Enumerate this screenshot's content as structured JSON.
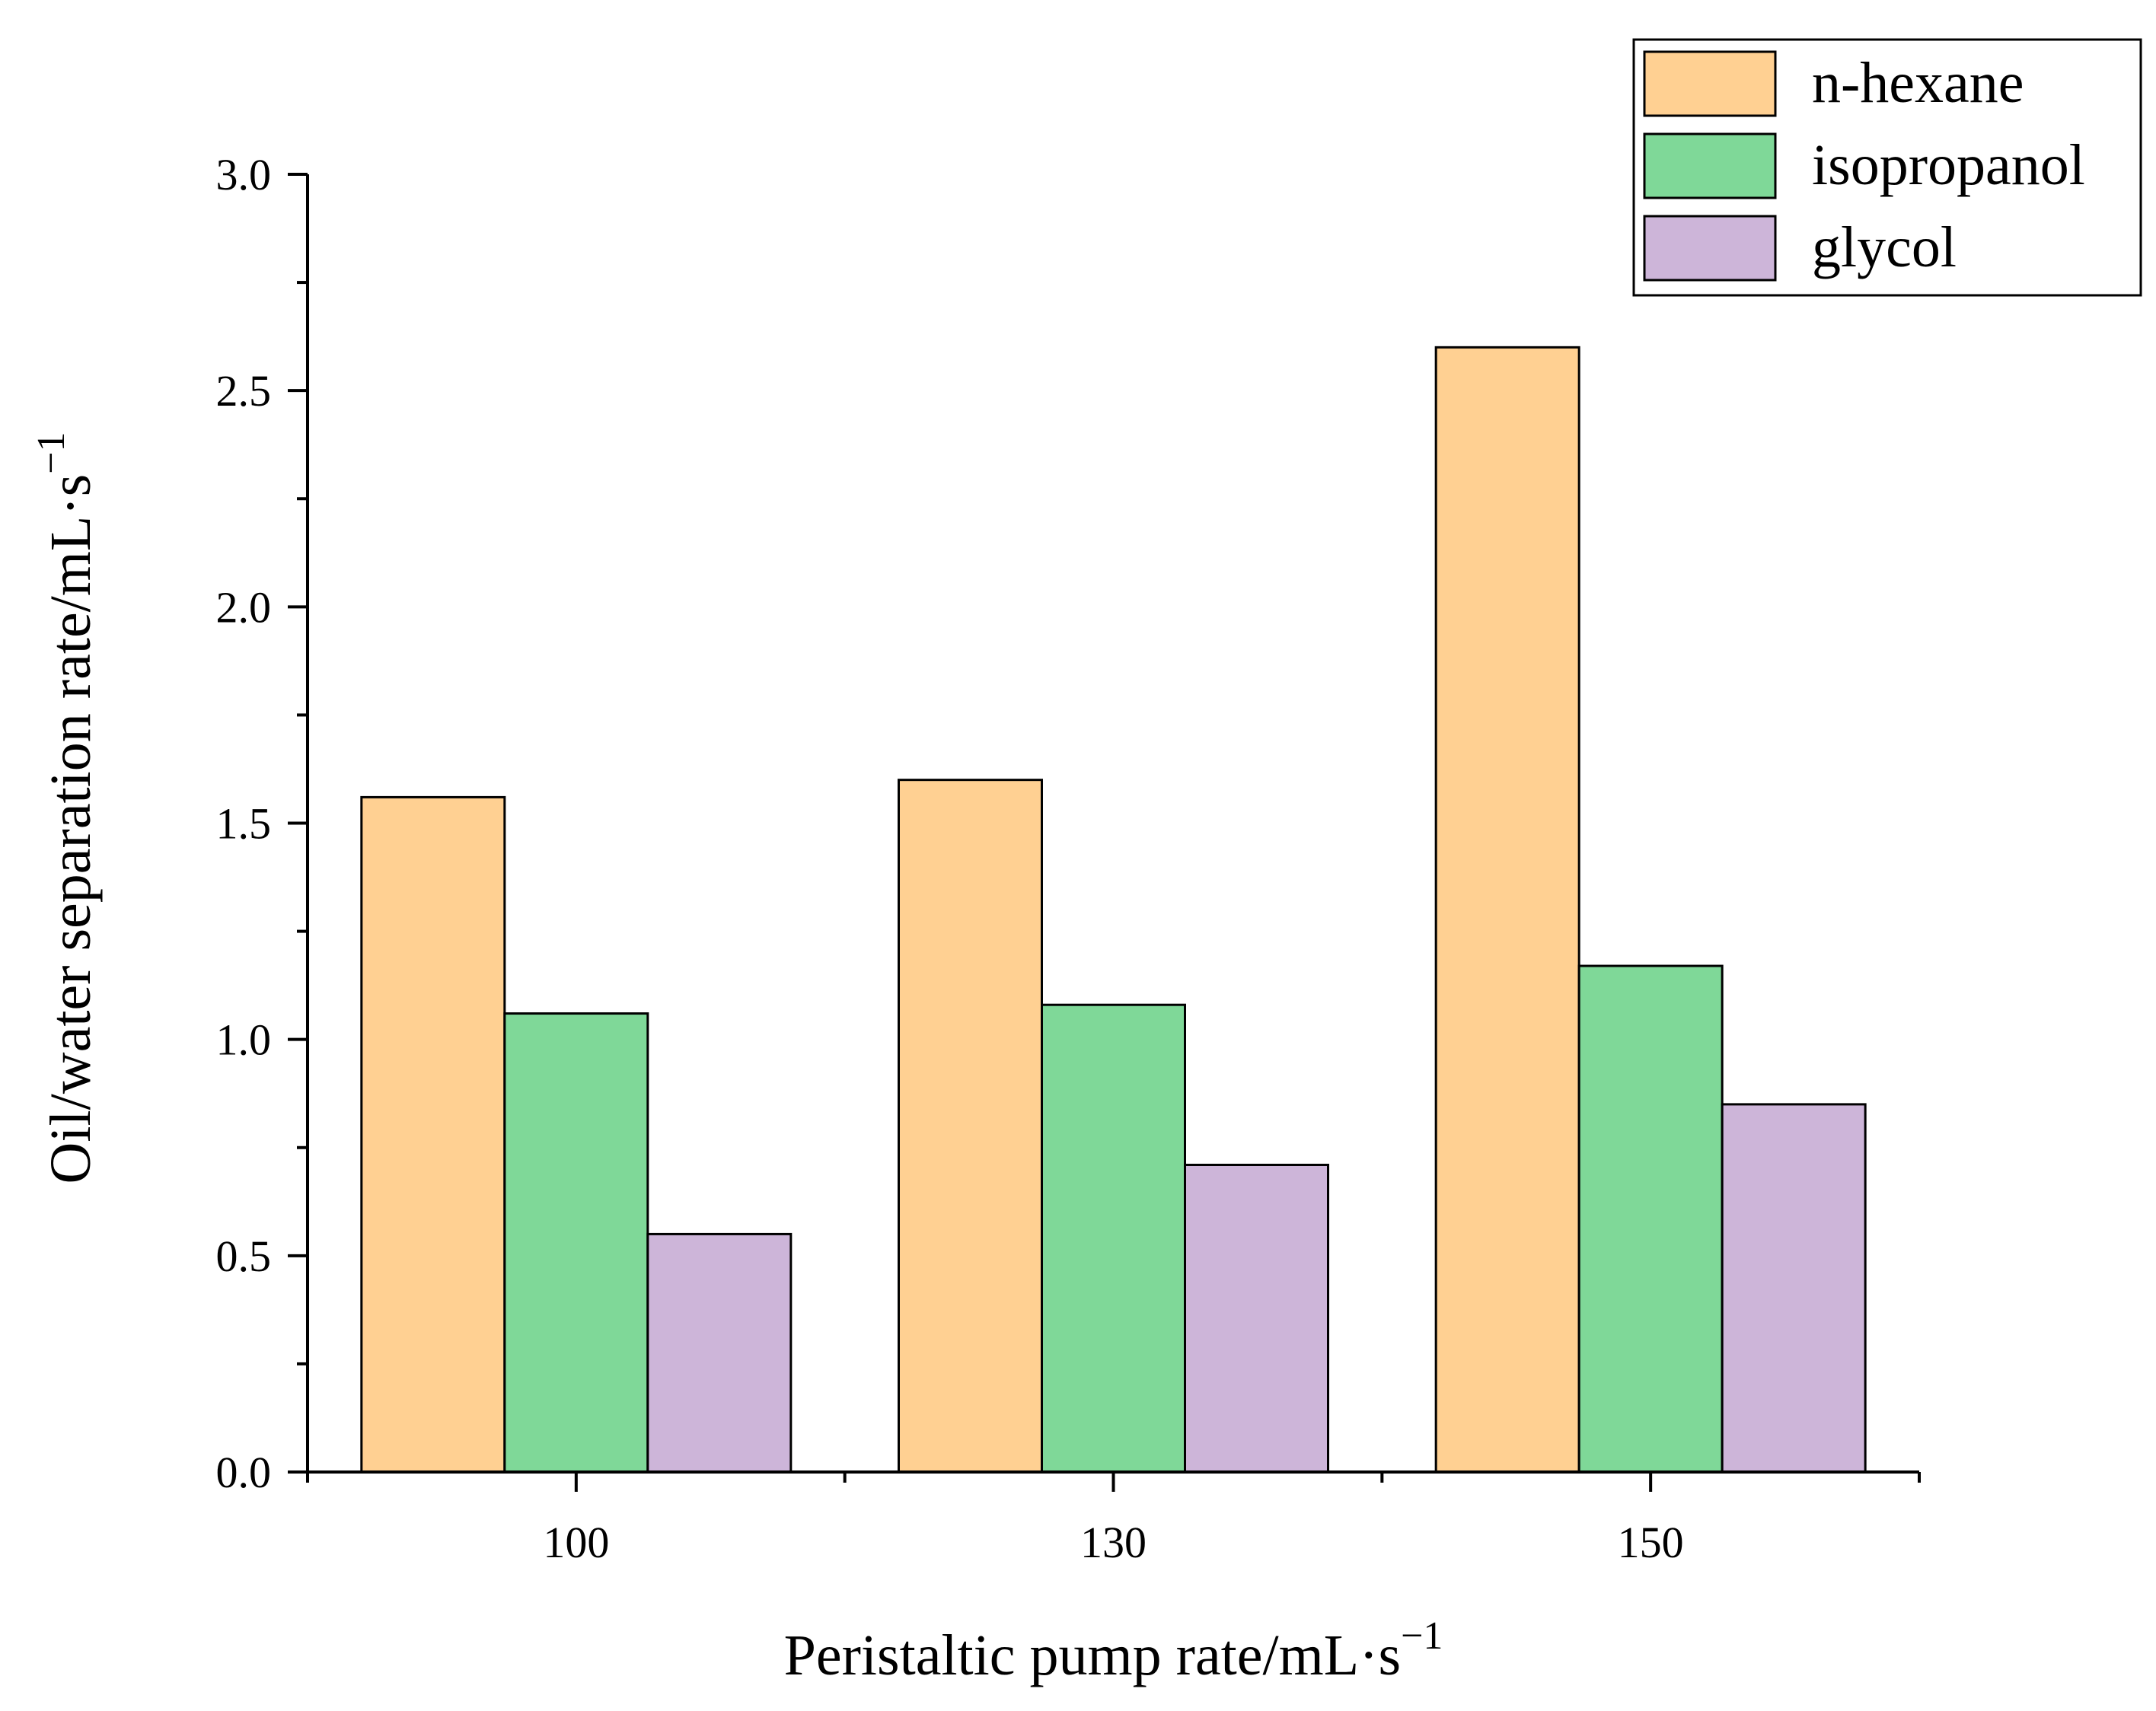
{
  "chart_data": {
    "type": "bar",
    "title": "",
    "xlabel": "Peristaltic pump rate/mL·s",
    "xlabel_sup": "−1",
    "ylabel": "Oil/water separation rate/mL·s",
    "ylabel_sup": "−1",
    "categories": [
      "100",
      "130",
      "150"
    ],
    "series": [
      {
        "name": "n-hexane",
        "color": "#FFD092",
        "values": [
          1.56,
          1.6,
          2.6
        ]
      },
      {
        "name": "isopropanol",
        "color": "#7FD898",
        "values": [
          1.06,
          1.08,
          1.17
        ]
      },
      {
        "name": "glycol",
        "color": "#CDB5D9",
        "values": [
          0.55,
          0.71,
          0.85
        ]
      }
    ],
    "ylim": [
      0,
      3.0
    ],
    "yticks": [
      "0.0",
      "0.5",
      "1.0",
      "1.5",
      "2.0",
      "2.5",
      "3.0"
    ],
    "ytick_values": [
      0,
      0.5,
      1.0,
      1.5,
      2.0,
      2.5,
      3.0
    ],
    "legend_position": "top-right",
    "grid": false
  }
}
